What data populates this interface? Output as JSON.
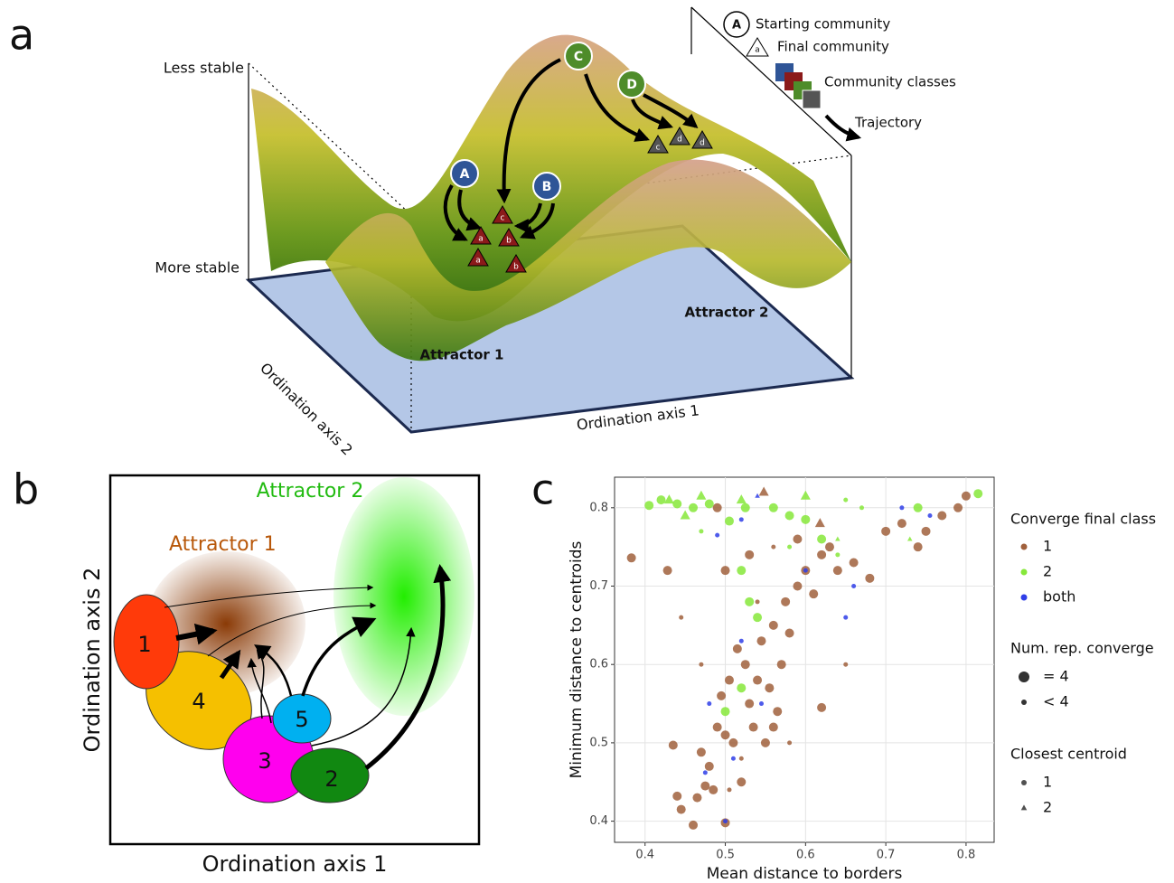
{
  "panel_a": {
    "letter": "a",
    "less_stable": "Less stable",
    "more_stable": "More stable",
    "axis1": "Ordination axis 1",
    "axis2": "Ordination axis 2",
    "attractor1": "Attractor 1",
    "attractor2": "Attractor 2",
    "legend": {
      "start_symbol": "A",
      "starting": "Starting community",
      "final_symbol": "a",
      "final": "Final community",
      "classes": "Community classes",
      "trajectory": "Trajectory"
    },
    "nodes": [
      "A",
      "B",
      "C",
      "D"
    ],
    "finals": [
      "c",
      "a",
      "b",
      "a",
      "b",
      "c",
      "d",
      "d"
    ]
  },
  "panel_b": {
    "letter": "b",
    "attractor1": "Attractor 1",
    "attractor2": "Attractor 2",
    "axis1": "Ordination axis 1",
    "axis2": "Ordination axis 2",
    "classes": [
      "1",
      "2",
      "3",
      "4",
      "5"
    ]
  },
  "chart_data": {
    "type": "scatter",
    "letter": "c",
    "x_label": "Mean distance to borders",
    "y_label": "Minimum distance to centroids",
    "xlim": [
      0.362,
      0.835
    ],
    "ylim": [
      0.373,
      0.839
    ],
    "xticks": [
      0.4,
      0.5,
      0.6,
      0.7,
      0.8
    ],
    "yticks": [
      0.4,
      0.5,
      0.6,
      0.7,
      0.8
    ],
    "grid": true,
    "legend_title": "Converge final class",
    "size_title": "Num. rep. converge",
    "size_labels": [
      "= 4",
      "< 4"
    ],
    "shape_title": "Closest centroid",
    "shape_labels": [
      "1",
      "2"
    ],
    "series": [
      {
        "name": "1",
        "color": "#a0603c",
        "x": [
          0.383,
          0.428,
          0.435,
          0.44,
          0.445,
          0.46,
          0.465,
          0.47,
          0.475,
          0.48,
          0.485,
          0.49,
          0.495,
          0.5,
          0.5,
          0.505,
          0.51,
          0.515,
          0.52,
          0.525,
          0.53,
          0.535,
          0.54,
          0.545,
          0.55,
          0.555,
          0.56,
          0.565,
          0.57,
          0.575,
          0.58,
          0.59,
          0.6,
          0.61,
          0.62,
          0.63,
          0.64,
          0.66,
          0.68,
          0.7,
          0.72,
          0.74,
          0.75,
          0.77,
          0.79,
          0.8,
          0.62,
          0.56,
          0.59,
          0.5,
          0.53,
          0.49,
          0.47,
          0.445,
          0.52,
          0.58,
          0.65,
          0.505,
          0.54,
          0.56,
          0.548,
          0.618
        ],
        "values": [
          0.736,
          0.72,
          0.497,
          0.432,
          0.415,
          0.395,
          0.43,
          0.488,
          0.445,
          0.47,
          0.44,
          0.52,
          0.56,
          0.398,
          0.51,
          0.58,
          0.5,
          0.62,
          0.45,
          0.6,
          0.55,
          0.52,
          0.58,
          0.63,
          0.5,
          0.57,
          0.65,
          0.54,
          0.6,
          0.68,
          0.64,
          0.7,
          0.72,
          0.69,
          0.74,
          0.75,
          0.72,
          0.73,
          0.71,
          0.77,
          0.78,
          0.75,
          0.77,
          0.79,
          0.8,
          0.815,
          0.545,
          0.52,
          0.76,
          0.72,
          0.74,
          0.8,
          0.6,
          0.66,
          0.48,
          0.5,
          0.6,
          0.44,
          0.68,
          0.75,
          0.82,
          0.78
        ],
        "big": [
          true,
          true,
          true,
          true,
          true,
          true,
          true,
          true,
          true,
          true,
          true,
          true,
          true,
          true,
          true,
          true,
          true,
          true,
          true,
          true,
          true,
          true,
          true,
          true,
          true,
          true,
          true,
          true,
          true,
          true,
          true,
          true,
          true,
          true,
          true,
          true,
          true,
          true,
          true,
          true,
          true,
          true,
          true,
          true,
          true,
          true,
          true,
          true,
          true,
          true,
          true,
          true,
          false,
          false,
          false,
          false,
          false,
          false,
          false,
          false,
          true,
          true
        ],
        "centroid": [
          1,
          1,
          1,
          1,
          1,
          1,
          1,
          1,
          1,
          1,
          1,
          1,
          1,
          1,
          1,
          1,
          1,
          1,
          1,
          1,
          1,
          1,
          1,
          1,
          1,
          1,
          1,
          1,
          1,
          1,
          1,
          1,
          1,
          1,
          1,
          1,
          1,
          1,
          1,
          1,
          1,
          1,
          1,
          1,
          1,
          1,
          1,
          1,
          1,
          1,
          1,
          1,
          1,
          1,
          1,
          1,
          1,
          1,
          1,
          1,
          2,
          2
        ]
      },
      {
        "name": "2",
        "color": "#86e83a",
        "x": [
          0.405,
          0.42,
          0.44,
          0.46,
          0.48,
          0.505,
          0.525,
          0.56,
          0.58,
          0.6,
          0.62,
          0.74,
          0.815,
          0.52,
          0.53,
          0.54,
          0.5,
          0.52,
          0.58,
          0.64,
          0.67,
          0.47,
          0.65,
          0.43,
          0.47,
          0.52,
          0.6,
          0.45,
          0.64,
          0.73
        ],
        "values": [
          0.803,
          0.81,
          0.805,
          0.8,
          0.805,
          0.783,
          0.8,
          0.8,
          0.79,
          0.785,
          0.76,
          0.8,
          0.818,
          0.72,
          0.68,
          0.66,
          0.54,
          0.57,
          0.75,
          0.74,
          0.8,
          0.77,
          0.81,
          0.81,
          0.815,
          0.81,
          0.815,
          0.79,
          0.76,
          0.76
        ],
        "big": [
          true,
          true,
          true,
          true,
          true,
          true,
          true,
          true,
          true,
          true,
          true,
          true,
          true,
          true,
          true,
          true,
          true,
          true,
          false,
          false,
          false,
          false,
          false,
          true,
          true,
          true,
          true,
          true,
          false,
          false
        ],
        "centroid": [
          1,
          1,
          1,
          1,
          1,
          1,
          1,
          1,
          1,
          1,
          1,
          1,
          1,
          1,
          1,
          1,
          1,
          1,
          1,
          1,
          1,
          1,
          1,
          2,
          2,
          2,
          2,
          2,
          2,
          2
        ]
      },
      {
        "name": "both",
        "color": "#2f3ee8",
        "x": [
          0.49,
          0.5,
          0.48,
          0.51,
          0.52,
          0.52,
          0.545,
          0.6,
          0.65,
          0.66,
          0.72,
          0.755,
          0.475,
          0.54
        ],
        "values": [
          0.765,
          0.4,
          0.55,
          0.48,
          0.785,
          0.63,
          0.55,
          0.72,
          0.66,
          0.7,
          0.8,
          0.79,
          0.462,
          0.815
        ],
        "big": [
          false,
          false,
          false,
          false,
          false,
          false,
          false,
          false,
          false,
          false,
          false,
          false,
          false,
          false
        ],
        "centroid": [
          1,
          1,
          1,
          1,
          1,
          1,
          1,
          1,
          1,
          1,
          1,
          1,
          1,
          2
        ]
      }
    ]
  }
}
